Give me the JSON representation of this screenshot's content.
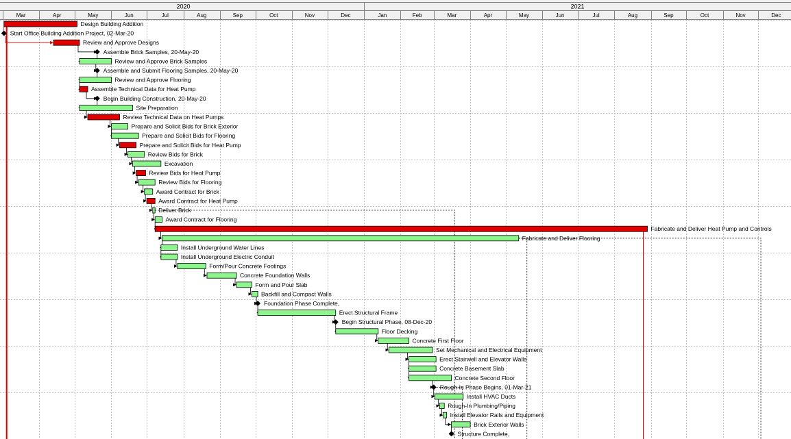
{
  "timescale": {
    "years": [
      {
        "label": "2020",
        "from": "2020-03-01",
        "to": "2020-12-31"
      },
      {
        "label": "2021",
        "from": "2021-01-01",
        "to": "2021-12-31"
      }
    ],
    "months": [
      {
        "label": "Mar",
        "from": "2020-03-01"
      },
      {
        "label": "Apr",
        "from": "2020-04-01"
      },
      {
        "label": "May",
        "from": "2020-05-01"
      },
      {
        "label": "Jun",
        "from": "2020-06-01"
      },
      {
        "label": "Jul",
        "from": "2020-07-01"
      },
      {
        "label": "Aug",
        "from": "2020-08-01"
      },
      {
        "label": "Sep",
        "from": "2020-09-01"
      },
      {
        "label": "Oct",
        "from": "2020-10-01"
      },
      {
        "label": "Nov",
        "from": "2020-11-01"
      },
      {
        "label": "Dec",
        "from": "2020-12-01"
      },
      {
        "label": "Jan",
        "from": "2021-01-01"
      },
      {
        "label": "Feb",
        "from": "2021-02-01"
      },
      {
        "label": "Mar",
        "from": "2021-03-01"
      },
      {
        "label": "Apr",
        "from": "2021-04-01"
      },
      {
        "label": "May",
        "from": "2021-05-01"
      },
      {
        "label": "Jun",
        "from": "2021-06-01"
      },
      {
        "label": "Jul",
        "from": "2021-07-01"
      },
      {
        "label": "Aug",
        "from": "2021-08-01"
      },
      {
        "label": "Sep",
        "from": "2021-09-01"
      },
      {
        "label": "Oct",
        "from": "2021-10-01"
      },
      {
        "label": "Nov",
        "from": "2021-11-01"
      },
      {
        "label": "Dec",
        "from": "2021-12-01"
      }
    ]
  },
  "colors": {
    "critical": "#e00000",
    "noncritical": "#8cf58c",
    "milestone": "#000000",
    "link": "#000000",
    "critical_link": "#e00000",
    "grid": "#c0c0c0",
    "header_bg": "#f0f0f0"
  },
  "tasks": [
    {
      "name": "Design Building Addition",
      "type": "summary",
      "start": "2020-03-02",
      "finish": "2020-05-03",
      "critical": true
    },
    {
      "name": "Start Office Building Addition Project, 02-Mar-20",
      "type": "milestone",
      "start": "2020-03-02",
      "critical": true
    },
    {
      "name": "Review and Approve Designs",
      "type": "task",
      "start": "2020-04-13",
      "finish": "2020-05-05",
      "critical": true
    },
    {
      "name": "Assemble Brick Samples, 20-May-20",
      "type": "milestone",
      "start": "2020-05-20",
      "critical": false
    },
    {
      "name": "Review and Approve Brick Samples",
      "type": "task",
      "start": "2020-05-05",
      "finish": "2020-06-01",
      "critical": false
    },
    {
      "name": "Assemble and Submit Flooring Samples, 20-May-20",
      "type": "milestone",
      "start": "2020-05-20",
      "critical": false
    },
    {
      "name": "Review and Approve Flooring",
      "type": "task",
      "start": "2020-05-05",
      "finish": "2020-06-01",
      "critical": false
    },
    {
      "name": "Assemble Technical Data for Heat Pump",
      "type": "task",
      "start": "2020-05-05",
      "finish": "2020-05-12",
      "critical": true
    },
    {
      "name": "Begin Building Construction, 20-May-20",
      "type": "milestone",
      "start": "2020-05-20",
      "critical": false
    },
    {
      "name": "Site Preparation",
      "type": "task",
      "start": "2020-05-05",
      "finish": "2020-06-19",
      "critical": false
    },
    {
      "name": "Review Technical Data on Heat Pumps",
      "type": "task",
      "start": "2020-05-12",
      "finish": "2020-06-08",
      "critical": true
    },
    {
      "name": "Prepare and Solicit Bids for Brick Exterior",
      "type": "task",
      "start": "2020-06-01",
      "finish": "2020-06-15",
      "critical": false
    },
    {
      "name": "Prepare and Solicit Bids for Flooring",
      "type": "task",
      "start": "2020-06-01",
      "finish": "2020-06-24",
      "critical": false
    },
    {
      "name": "Prepare and Solicit Bids for Heat Pump",
      "type": "task",
      "start": "2020-06-08",
      "finish": "2020-06-22",
      "critical": true
    },
    {
      "name": "Review Bids for Brick",
      "type": "task",
      "start": "2020-06-15",
      "finish": "2020-06-29",
      "critical": false
    },
    {
      "name": "Excavation",
      "type": "task",
      "start": "2020-06-19",
      "finish": "2020-07-13",
      "critical": false
    },
    {
      "name": "Review Bids for Heat Pump",
      "type": "task",
      "start": "2020-06-22",
      "finish": "2020-06-30",
      "critical": true
    },
    {
      "name": "Review Bids for Flooring",
      "type": "task",
      "start": "2020-06-24",
      "finish": "2020-07-08",
      "critical": false
    },
    {
      "name": "Award Contract for Brick",
      "type": "task",
      "start": "2020-06-29",
      "finish": "2020-07-06",
      "critical": false
    },
    {
      "name": "Award Contract for Heat Pump",
      "type": "task",
      "start": "2020-07-01",
      "finish": "2020-07-08",
      "critical": true
    },
    {
      "name": "Deliver Brick",
      "type": "task",
      "start": "2020-07-06",
      "finish": "2020-07-08",
      "critical": false
    },
    {
      "name": "Award Contract for Flooring",
      "type": "task",
      "start": "2020-07-08",
      "finish": "2020-07-14",
      "critical": false
    },
    {
      "name": "Fabricate and Deliver Heat Pump and Controls",
      "type": "task",
      "start": "2020-07-08",
      "finish": "2021-08-29",
      "critical": true
    },
    {
      "name": "Fabricate and Deliver Flooring",
      "type": "task",
      "start": "2020-07-14",
      "finish": "2021-05-12",
      "critical": false
    },
    {
      "name": "Install Underground Water Lines",
      "type": "task",
      "start": "2020-07-13",
      "finish": "2020-07-27",
      "critical": false
    },
    {
      "name": "Install Underground Electric Conduit",
      "type": "task",
      "start": "2020-07-13",
      "finish": "2020-07-27",
      "critical": false
    },
    {
      "name": "Form/Pour Concrete Footings",
      "type": "task",
      "start": "2020-07-27",
      "finish": "2020-08-20",
      "critical": false
    },
    {
      "name": "Concrete Foundation Walls",
      "type": "task",
      "start": "2020-08-21",
      "finish": "2020-09-15",
      "critical": false
    },
    {
      "name": "Form and Pour Slab",
      "type": "task",
      "start": "2020-09-15",
      "finish": "2020-09-28",
      "critical": false
    },
    {
      "name": "Backfill and Compact Walls",
      "type": "task",
      "start": "2020-09-28",
      "finish": "2020-10-03",
      "critical": false
    },
    {
      "name": "Foundation Phase Complete,",
      "type": "milestone",
      "start": "2020-10-03",
      "critical": false
    },
    {
      "name": "Erect Structural Frame",
      "type": "task",
      "start": "2020-10-03",
      "finish": "2020-12-08",
      "critical": false
    },
    {
      "name": "Begin Structural Phase, 08-Dec-20",
      "type": "milestone",
      "start": "2020-12-08",
      "critical": false
    },
    {
      "name": "Floor Decking",
      "type": "task",
      "start": "2020-12-08",
      "finish": "2021-01-13",
      "critical": false
    },
    {
      "name": "Concrete First Floor",
      "type": "task",
      "start": "2021-01-13",
      "finish": "2021-02-08",
      "critical": false
    },
    {
      "name": "Set Mechanical and Electrical Equipment",
      "type": "task",
      "start": "2021-01-22",
      "finish": "2021-02-28",
      "critical": false
    },
    {
      "name": "Erect Stairwell and Elevator Walls",
      "type": "task",
      "start": "2021-02-08",
      "finish": "2021-03-03",
      "critical": false
    },
    {
      "name": "Concrete Basement Slab",
      "type": "task",
      "start": "2021-02-08",
      "finish": "2021-03-03",
      "critical": false
    },
    {
      "name": "Concrete Second Floor",
      "type": "task",
      "start": "2021-02-08",
      "finish": "2021-03-16",
      "critical": false
    },
    {
      "name": "Rough-In Phase Begins, 01-Mar-21",
      "type": "milestone",
      "start": "2021-03-01",
      "critical": false
    },
    {
      "name": "Install HVAC Ducts",
      "type": "task",
      "start": "2021-03-02",
      "finish": "2021-03-26",
      "critical": false
    },
    {
      "name": "Rough-In Plumbing/Piping",
      "type": "task",
      "start": "2021-03-06",
      "finish": "2021-03-10",
      "critical": false
    },
    {
      "name": "Install Elevator Rails and Equipment",
      "type": "task",
      "start": "2021-03-09",
      "finish": "2021-03-12",
      "critical": false
    },
    {
      "name": "Brick Exterior Walls",
      "type": "task",
      "start": "2021-03-16",
      "finish": "2021-04-01",
      "critical": false
    },
    {
      "name": "Structure Complete,",
      "type": "milestone",
      "start": "2021-03-16",
      "critical": false
    }
  ]
}
